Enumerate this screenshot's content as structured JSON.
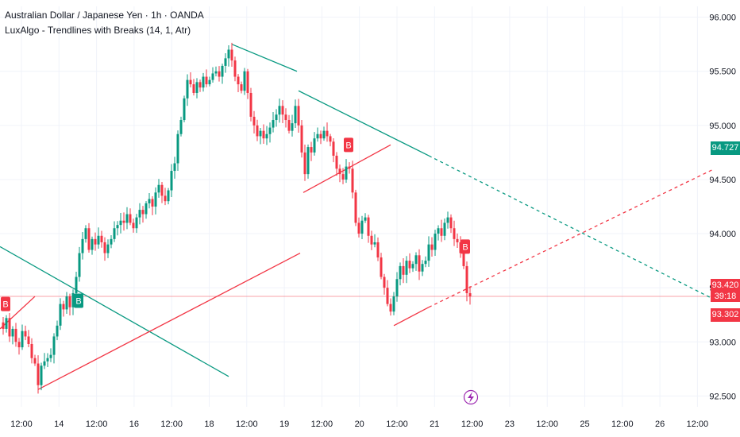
{
  "legend": {
    "symbol_line": "Australian Dollar / Japanese Yen · 1h · OANDA",
    "indicator_line": "LuxAlgo - Trendlines with Breaks (14, 1, Atr)"
  },
  "colors": {
    "up": "#089981",
    "down": "#f23645",
    "grid": "#f0f3fa",
    "current_price_line": "#f23645"
  },
  "chart_data": {
    "type": "candlestick",
    "title": "Australian Dollar / Japanese Yen · 1h · OANDA",
    "indicator": "LuxAlgo - Trendlines with Breaks (14, 1, Atr)",
    "ylim": [
      92.4,
      96.1
    ],
    "y_ticks": [
      "96.000",
      "95.500",
      "95.000",
      "94.500",
      "94.000",
      "93.500",
      "93.000",
      "92.500"
    ],
    "x_ticks": [
      "12:00",
      "14",
      "12:00",
      "16",
      "12:00",
      "18",
      "12:00",
      "19",
      "12:00",
      "20",
      "12:00",
      "21",
      "12:00",
      "23",
      "12:00",
      "25",
      "12:00",
      "26",
      "12:00"
    ],
    "current_price": "93.420",
    "countdown": "39:18",
    "other_price": "93.302",
    "trendline_price": "94.727",
    "close_path": [
      [
        0,
        93.18
      ],
      [
        4,
        93.12
      ],
      [
        8,
        93.22
      ],
      [
        12,
        93.05
      ],
      [
        16,
        93.12
      ],
      [
        20,
        93.0
      ],
      [
        24,
        92.95
      ],
      [
        28,
        93.1
      ],
      [
        32,
        93.05
      ],
      [
        36,
        92.98
      ],
      [
        40,
        92.85
      ],
      [
        44,
        92.8
      ],
      [
        48,
        92.6
      ],
      [
        52,
        92.78
      ],
      [
        56,
        92.82
      ],
      [
        60,
        92.85
      ],
      [
        64,
        92.88
      ],
      [
        68,
        93.05
      ],
      [
        72,
        93.15
      ],
      [
        76,
        93.35
      ],
      [
        80,
        93.3
      ],
      [
        84,
        93.42
      ],
      [
        88,
        93.32
      ],
      [
        92,
        93.45
      ],
      [
        96,
        93.6
      ],
      [
        100,
        93.82
      ],
      [
        104,
        93.95
      ],
      [
        108,
        94.05
      ],
      [
        112,
        93.85
      ],
      [
        116,
        93.95
      ],
      [
        120,
        93.9
      ],
      [
        124,
        93.98
      ],
      [
        128,
        93.92
      ],
      [
        132,
        93.82
      ],
      [
        136,
        93.9
      ],
      [
        140,
        93.95
      ],
      [
        144,
        94.05
      ],
      [
        148,
        94.08
      ],
      [
        152,
        94.12
      ],
      [
        156,
        94.1
      ],
      [
        160,
        94.18
      ],
      [
        164,
        94.1
      ],
      [
        168,
        94.05
      ],
      [
        172,
        94.15
      ],
      [
        176,
        94.22
      ],
      [
        180,
        94.18
      ],
      [
        184,
        94.28
      ],
      [
        188,
        94.32
      ],
      [
        192,
        94.25
      ],
      [
        196,
        94.38
      ],
      [
        200,
        94.45
      ],
      [
        204,
        94.35
      ],
      [
        208,
        94.3
      ],
      [
        212,
        94.4
      ],
      [
        216,
        94.58
      ],
      [
        220,
        94.65
      ],
      [
        224,
        94.92
      ],
      [
        228,
        95.05
      ],
      [
        232,
        95.25
      ],
      [
        236,
        95.42
      ],
      [
        240,
        95.38
      ],
      [
        244,
        95.3
      ],
      [
        248,
        95.4
      ],
      [
        252,
        95.35
      ],
      [
        256,
        95.45
      ],
      [
        260,
        95.38
      ],
      [
        264,
        95.42
      ],
      [
        268,
        95.48
      ],
      [
        272,
        95.5
      ],
      [
        276,
        95.45
      ],
      [
        280,
        95.55
      ],
      [
        284,
        95.62
      ],
      [
        288,
        95.7
      ],
      [
        292,
        95.6
      ],
      [
        296,
        95.45
      ],
      [
        300,
        95.38
      ],
      [
        304,
        95.32
      ],
      [
        308,
        95.5
      ],
      [
        312,
        95.3
      ],
      [
        316,
        95.08
      ],
      [
        320,
        95.0
      ],
      [
        324,
        94.9
      ],
      [
        328,
        94.95
      ],
      [
        332,
        94.88
      ],
      [
        336,
        94.92
      ],
      [
        340,
        94.98
      ],
      [
        344,
        95.05
      ],
      [
        348,
        95.1
      ],
      [
        352,
        95.18
      ],
      [
        356,
        95.1
      ],
      [
        360,
        95.05
      ],
      [
        364,
        94.95
      ],
      [
        368,
        95.02
      ],
      [
        372,
        95.18
      ],
      [
        376,
        95.0
      ],
      [
        380,
        94.75
      ],
      [
        384,
        94.55
      ],
      [
        388,
        94.8
      ],
      [
        392,
        94.75
      ],
      [
        396,
        94.88
      ],
      [
        400,
        94.92
      ],
      [
        404,
        94.88
      ],
      [
        408,
        94.95
      ],
      [
        412,
        94.9
      ],
      [
        416,
        94.85
      ],
      [
        420,
        94.72
      ],
      [
        424,
        94.6
      ],
      [
        428,
        94.55
      ],
      [
        432,
        94.5
      ],
      [
        436,
        94.62
      ],
      [
        440,
        94.6
      ],
      [
        444,
        94.38
      ],
      [
        448,
        94.1
      ],
      [
        452,
        94.0
      ],
      [
        456,
        94.12
      ],
      [
        460,
        94.15
      ],
      [
        464,
        93.98
      ],
      [
        468,
        93.9
      ],
      [
        472,
        93.92
      ],
      [
        476,
        93.78
      ],
      [
        480,
        93.6
      ],
      [
        484,
        93.5
      ],
      [
        488,
        93.35
      ],
      [
        492,
        93.28
      ],
      [
        496,
        93.42
      ],
      [
        500,
        93.58
      ],
      [
        504,
        93.7
      ],
      [
        508,
        93.62
      ],
      [
        512,
        93.75
      ],
      [
        516,
        93.68
      ],
      [
        520,
        93.72
      ],
      [
        524,
        93.8
      ],
      [
        528,
        93.65
      ],
      [
        532,
        93.72
      ],
      [
        536,
        93.75
      ],
      [
        540,
        93.9
      ],
      [
        544,
        93.85
      ],
      [
        548,
        94.0
      ],
      [
        552,
        94.05
      ],
      [
        556,
        93.98
      ],
      [
        560,
        94.1
      ],
      [
        564,
        94.15
      ],
      [
        568,
        94.05
      ],
      [
        572,
        93.95
      ],
      [
        576,
        93.92
      ],
      [
        580,
        93.82
      ],
      [
        584,
        93.7
      ],
      [
        588,
        93.45
      ],
      [
        592,
        93.42
      ]
    ],
    "trendlines": [
      {
        "color": "#089981",
        "style": "solid",
        "points": [
          [
            0,
            93.88
          ],
          [
            288,
            92.68
          ]
        ]
      },
      {
        "color": "#f23645",
        "style": "solid",
        "points": [
          [
            48,
            92.56
          ],
          [
            378,
            93.82
          ]
        ]
      },
      {
        "color": "#089981",
        "style": "solid",
        "points": [
          [
            292,
            95.75
          ],
          [
            374,
            95.5
          ]
        ]
      },
      {
        "color": "#089981",
        "style": "solid",
        "points": [
          [
            376,
            95.32
          ],
          [
            540,
            94.72
          ]
        ]
      },
      {
        "color": "#089981",
        "style": "dashed",
        "points": [
          [
            540,
            94.72
          ],
          [
            900,
            93.39
          ]
        ]
      },
      {
        "color": "#f23645",
        "style": "solid",
        "points": [
          [
            382,
            94.38
          ],
          [
            492,
            94.82
          ]
        ]
      },
      {
        "color": "#f23645",
        "style": "solid",
        "points": [
          [
            496,
            93.15
          ],
          [
            540,
            93.32
          ]
        ]
      },
      {
        "color": "#f23645",
        "style": "dashed",
        "points": [
          [
            540,
            93.32
          ],
          [
            900,
            94.6
          ]
        ]
      },
      {
        "color": "#f23645",
        "style": "solid",
        "points": [
          [
            0,
            93.12
          ],
          [
            44,
            93.42
          ]
        ]
      }
    ],
    "break_labels": [
      {
        "text": "B",
        "x": 7,
        "price": 93.35,
        "color": "#f23645"
      },
      {
        "text": "B",
        "x": 99,
        "price": 93.38,
        "color": "#089981"
      },
      {
        "text": "B",
        "x": 439,
        "price": 94.82,
        "color": "#f23645"
      },
      {
        "text": "B",
        "x": 586,
        "price": 93.88,
        "color": "#f23645"
      }
    ]
  }
}
